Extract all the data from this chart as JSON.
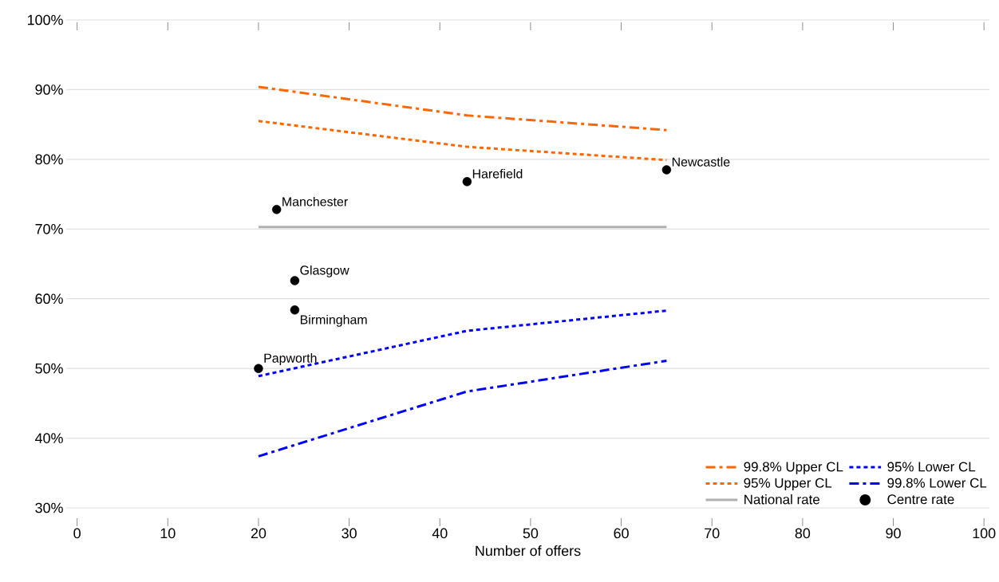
{
  "chart_data": {
    "type": "line",
    "xlabel": "Number of offers",
    "xlim": [
      -1.2,
      100.6
    ],
    "xticks": [
      0,
      10,
      20,
      30,
      40,
      50,
      60,
      70,
      80,
      90,
      100
    ],
    "ylim": [
      30,
      100
    ],
    "yticks": [
      {
        "value": 30,
        "label": "30%"
      },
      {
        "value": 40,
        "label": "40%"
      },
      {
        "value": 50,
        "label": "50%"
      },
      {
        "value": 60,
        "label": "60%"
      },
      {
        "value": 70,
        "label": "70%"
      },
      {
        "value": 80,
        "label": "80%"
      },
      {
        "value": 90,
        "label": "90%"
      },
      {
        "value": 100,
        "label": "100%"
      }
    ],
    "grid": "y",
    "legend": "bottom right",
    "series": [
      {
        "name": "99.8% Upper CL",
        "color": "#ff6600",
        "line_style": "dashed",
        "marker": "none",
        "x": [
          20,
          43,
          65
        ],
        "values": [
          90.4,
          86.3,
          84.2
        ]
      },
      {
        "name": "95% Lower CL",
        "color": "#0000ff",
        "line_style": "dotted",
        "marker": "none",
        "x": [
          20,
          43,
          65
        ],
        "values": [
          48.9,
          55.4,
          58.3
        ]
      },
      {
        "name": "95% Upper CL",
        "color": "#ff6600",
        "line_style": "dotted",
        "marker": "none",
        "x": [
          20,
          43,
          65
        ],
        "values": [
          85.5,
          81.8,
          79.9
        ]
      },
      {
        "name": "99.8% Lower CL",
        "color": "#0000ff",
        "line_style": "dashed",
        "marker": "none",
        "x": [
          20,
          43,
          65
        ],
        "values": [
          37.4,
          46.7,
          51.1
        ]
      },
      {
        "name": "National rate",
        "color": "#b0b0b0",
        "line_style": "solid",
        "marker": "none",
        "x": [
          20,
          65
        ],
        "values": [
          70.3,
          70.3
        ]
      },
      {
        "name": "Centre rate",
        "type": "scatter",
        "color": "#000000",
        "marker": "circle",
        "x": [
          20,
          24,
          24,
          22,
          43,
          65
        ],
        "values": [
          50.0,
          58.4,
          62.6,
          72.8,
          76.8,
          78.5
        ]
      }
    ],
    "annotations": [
      {
        "text": "Papworth",
        "x": 20,
        "y": 50.0
      },
      {
        "text": "Birmingham",
        "x": 24,
        "y": 58.4
      },
      {
        "text": "Glasgow",
        "x": 24,
        "y": 62.6
      },
      {
        "text": "Manchester",
        "x": 22,
        "y": 72.8
      },
      {
        "text": "Harefield",
        "x": 43,
        "y": 76.8
      },
      {
        "text": "Newcastle",
        "x": 65,
        "y": 78.5
      }
    ]
  }
}
